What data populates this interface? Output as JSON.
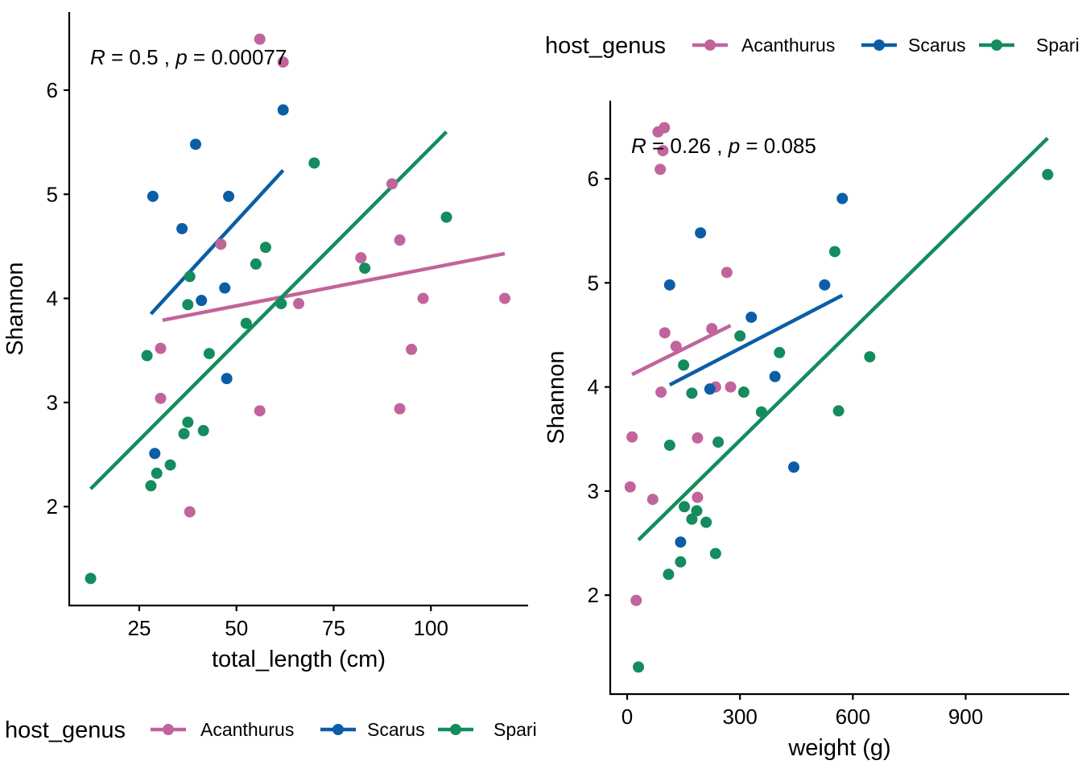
{
  "colors": {
    "Acanthurus": "#C1649C",
    "Scarus": "#0B5EA6",
    "Spari": "#138C5E",
    "axis": "#000000"
  },
  "chart_data": [
    {
      "type": "scatter",
      "id": "length",
      "xlabel": "total_length (cm)",
      "ylabel": "Shannon",
      "xlim": [
        7,
        125
      ],
      "ylim": [
        1.05,
        6.75
      ],
      "x_ticks": [
        25,
        50,
        75,
        100
      ],
      "y_ticks": [
        2,
        3,
        4,
        5,
        6
      ],
      "grid": false,
      "legend_position": "bottom",
      "legend": {
        "title": "host_genus",
        "entries": [
          "Acanthurus",
          "Scarus",
          "Spari"
        ]
      },
      "annotation": {
        "r_symbol": "R",
        "r_text": " = 0.5 , ",
        "p_symbol": "p",
        "p_text": " = 0.00077"
      },
      "series": [
        {
          "name": "Acanthurus",
          "points": [
            [
              56,
              6.49
            ],
            [
              62,
              6.27
            ],
            [
              90,
              5.1
            ],
            [
              46,
              4.52
            ],
            [
              92,
              4.56
            ],
            [
              82,
              4.39
            ],
            [
              66,
              3.95
            ],
            [
              98,
              4.0
            ],
            [
              119,
              4.0
            ],
            [
              95,
              3.51
            ],
            [
              30.5,
              3.52
            ],
            [
              30.5,
              3.04
            ],
            [
              56,
              2.92
            ],
            [
              92,
              2.94
            ],
            [
              38,
              1.95
            ]
          ],
          "fit": [
            [
              31,
              3.79
            ],
            [
              119,
              4.43
            ]
          ]
        },
        {
          "name": "Scarus",
          "points": [
            [
              62,
              5.81
            ],
            [
              39.5,
              5.48
            ],
            [
              28.5,
              4.98
            ],
            [
              48,
              4.98
            ],
            [
              36,
              4.67
            ],
            [
              47,
              4.1
            ],
            [
              41,
              3.98
            ],
            [
              47.5,
              3.23
            ],
            [
              29,
              2.51
            ]
          ],
          "fit": [
            [
              28,
              3.85
            ],
            [
              62,
              5.23
            ]
          ]
        },
        {
          "name": "Spari",
          "points": [
            [
              70,
              5.3
            ],
            [
              104,
              4.78
            ],
            [
              57.5,
              4.49
            ],
            [
              55,
              4.33
            ],
            [
              83,
              4.29
            ],
            [
              38,
              4.21
            ],
            [
              37.5,
              3.94
            ],
            [
              61.5,
              3.95
            ],
            [
              52.5,
              3.76
            ],
            [
              43,
              3.47
            ],
            [
              27,
              3.45
            ],
            [
              37.5,
              2.81
            ],
            [
              41.5,
              2.73
            ],
            [
              36.5,
              2.7
            ],
            [
              33,
              2.4
            ],
            [
              29.5,
              2.32
            ],
            [
              28,
              2.2
            ],
            [
              12.5,
              1.31
            ]
          ],
          "fit": [
            [
              12.5,
              2.17
            ],
            [
              104,
              5.6
            ]
          ]
        }
      ]
    },
    {
      "type": "scatter",
      "id": "weight",
      "xlabel": "weight (g)",
      "ylabel": "Shannon",
      "xlim": [
        -45,
        1175
      ],
      "ylim": [
        1.05,
        6.75
      ],
      "x_ticks": [
        0,
        300,
        600,
        900
      ],
      "y_ticks": [
        2,
        3,
        4,
        5,
        6
      ],
      "grid": false,
      "legend_position": "top",
      "legend": {
        "title": "host_genus",
        "entries": [
          "Acanthurus",
          "Scarus",
          "Spari"
        ]
      },
      "annotation": {
        "r_symbol": "R",
        "r_text": " = 0.26 , ",
        "p_symbol": "p",
        "p_text": " = 0.085"
      },
      "series": [
        {
          "name": "Acanthurus",
          "points": [
            [
              99,
              6.49
            ],
            [
              82,
              6.45
            ],
            [
              95,
              6.27
            ],
            [
              88,
              6.09
            ],
            [
              265,
              5.1
            ],
            [
              225,
              4.56
            ],
            [
              100,
              4.52
            ],
            [
              130,
              4.39
            ],
            [
              90,
              3.95
            ],
            [
              235,
              4.0
            ],
            [
              275,
              4.0
            ],
            [
              13,
              3.52
            ],
            [
              187,
              3.51
            ],
            [
              8,
              3.04
            ],
            [
              68,
              2.92
            ],
            [
              187,
              2.94
            ],
            [
              24,
              1.95
            ]
          ],
          "fit": [
            [
              13,
              4.12
            ],
            [
              275,
              4.59
            ]
          ]
        },
        {
          "name": "Scarus",
          "points": [
            [
              572,
              5.81
            ],
            [
              195,
              5.48
            ],
            [
              113,
              4.98
            ],
            [
              525,
              4.98
            ],
            [
              330,
              4.67
            ],
            [
              393,
              4.1
            ],
            [
              220,
              3.98
            ],
            [
              443,
              3.23
            ],
            [
              142,
              2.51
            ]
          ],
          "fit": [
            [
              113,
              4.02
            ],
            [
              572,
              4.88
            ]
          ]
        },
        {
          "name": "Spari",
          "points": [
            [
              1118,
              6.04
            ],
            [
              552,
              5.3
            ],
            [
              300,
              4.49
            ],
            [
              405,
              4.33
            ],
            [
              645,
              4.29
            ],
            [
              150,
              4.21
            ],
            [
              172,
              3.94
            ],
            [
              310,
              3.95
            ],
            [
              357,
              3.76
            ],
            [
              562,
              3.77
            ],
            [
              113,
              3.44
            ],
            [
              242,
              3.47
            ],
            [
              152,
              2.85
            ],
            [
              185,
              2.81
            ],
            [
              172,
              2.73
            ],
            [
              210,
              2.7
            ],
            [
              235,
              2.4
            ],
            [
              142,
              2.32
            ],
            [
              110,
              2.2
            ],
            [
              30,
              1.31
            ]
          ],
          "fit": [
            [
              30,
              2.53
            ],
            [
              1118,
              6.39
            ]
          ]
        }
      ]
    }
  ]
}
